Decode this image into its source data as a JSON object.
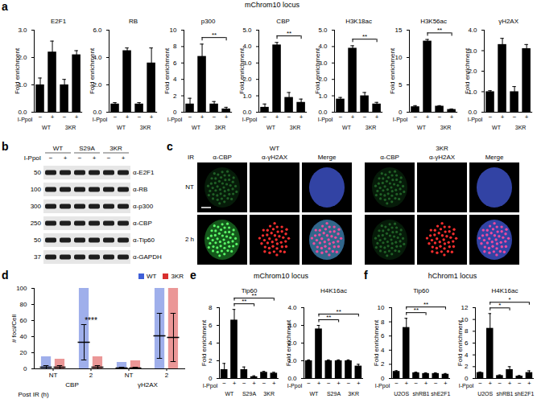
{
  "panels": [
    {
      "label": "a",
      "heading": "mChrom10 locus"
    },
    {
      "label": "b",
      "blot": {
        "columns": [
          "WT",
          "S29A",
          "3KR"
        ],
        "treatment_label": "I-PpoI",
        "treatment": [
          "−",
          "+"
        ],
        "rows": [
          {
            "antibody": "α-E2F1",
            "mw": 50
          },
          {
            "antibody": "α-RB",
            "mw": 100
          },
          {
            "antibody": "α-p300",
            "mw": 300
          },
          {
            "antibody": "α-CBP",
            "mw": 250
          },
          {
            "antibody": "α-Tip60",
            "mw": 50
          },
          {
            "antibody": "α-GAPDH",
            "mw": 37
          }
        ]
      }
    },
    {
      "label": "c",
      "microscopy": {
        "groups": [
          "WT",
          "3KR"
        ],
        "channels": [
          "α-CBP",
          "α-γH2AX",
          "Merge"
        ],
        "row_label": "IR",
        "rows": [
          "NT",
          "2 h"
        ]
      }
    },
    {
      "label": "d"
    },
    {
      "label": "e",
      "heading": "mChrom10 locus"
    },
    {
      "label": "f",
      "heading": "hChrom1 locus"
    }
  ],
  "chart_data": [
    {
      "panel": "a",
      "type": "bar",
      "title": "E2F1",
      "ylabel": "Fold enrichment",
      "row_label": "I-PpoI",
      "categories": [
        "−",
        "+",
        "−",
        "+"
      ],
      "groups": [
        "WT",
        "3KR"
      ],
      "values": [
        1.0,
        2.2,
        1.0,
        2.1
      ],
      "errors": [
        0.25,
        0.4,
        0.2,
        0.15
      ],
      "color": "#000000",
      "ylim": [
        0,
        3
      ],
      "yticks": [
        0,
        1,
        2,
        3
      ]
    },
    {
      "panel": "a",
      "type": "bar",
      "title": "RB",
      "ylabel": "Fold enrichment",
      "row_label": "I-PpoI",
      "categories": [
        "−",
        "+",
        "−",
        "+"
      ],
      "groups": [
        "WT",
        "3KR"
      ],
      "values": [
        0.6,
        4.5,
        0.6,
        3.6
      ],
      "errors": [
        0.1,
        0.2,
        0.1,
        1.1
      ],
      "color": "#000000",
      "ylim": [
        0,
        6
      ],
      "yticks": [
        0,
        2,
        4,
        6
      ]
    },
    {
      "panel": "a",
      "type": "bar",
      "title": "p300",
      "ylabel": "Fold enrichment",
      "row_label": "I-PpoI",
      "categories": [
        "−",
        "+",
        "−",
        "+"
      ],
      "groups": [
        "WT",
        "3KR"
      ],
      "values": [
        1.0,
        6.8,
        1.0,
        0.4
      ],
      "errors": [
        0.7,
        1.5,
        0.3,
        0.2
      ],
      "color": "#000000",
      "ylim": [
        0,
        10
      ],
      "yticks": [
        0,
        2,
        4,
        6,
        8,
        10
      ],
      "annotations": [
        {
          "text": "**",
          "from": 1,
          "to": 3
        }
      ]
    },
    {
      "panel": "a",
      "type": "bar",
      "title": "CBP",
      "ylabel": "Fold enrichment",
      "row_label": "I-PpoI",
      "categories": [
        "−",
        "+",
        "−",
        "+"
      ],
      "groups": [
        "WT",
        "3KR"
      ],
      "values": [
        0.3,
        4.1,
        0.9,
        0.6
      ],
      "errors": [
        0.2,
        0.15,
        0.3,
        0.2
      ],
      "color": "#000000",
      "ylim": [
        0,
        5
      ],
      "yticks": [
        0,
        1,
        2,
        3,
        4,
        5
      ],
      "annotations": [
        {
          "text": "**",
          "from": 1,
          "to": 3
        }
      ]
    },
    {
      "panel": "a",
      "type": "bar",
      "title": "H3K18ac",
      "ylabel": "Fold enrichment",
      "row_label": "I-PpoI",
      "categories": [
        "−",
        "+",
        "−",
        "+"
      ],
      "groups": [
        "WT",
        "3KR"
      ],
      "values": [
        0.8,
        3.9,
        1.0,
        0.5
      ],
      "errors": [
        0.1,
        0.15,
        0.2,
        0.1
      ],
      "color": "#000000",
      "ylim": [
        0,
        5
      ],
      "yticks": [
        0,
        1,
        2,
        3,
        4,
        5
      ],
      "annotations": [
        {
          "text": "**",
          "from": 1,
          "to": 3
        }
      ]
    },
    {
      "panel": "a",
      "type": "bar",
      "title": "H3K56ac",
      "ylabel": "Fold enrichment",
      "row_label": "I-PpoI",
      "categories": [
        "−",
        "+",
        "−",
        "+"
      ],
      "groups": [
        "WT",
        "3KR"
      ],
      "values": [
        1.0,
        13.0,
        1.1,
        0.5
      ],
      "errors": [
        0.2,
        0.3,
        0.1,
        0.1
      ],
      "color": "#000000",
      "ylim": [
        0,
        15
      ],
      "yticks": [
        0,
        5,
        10,
        15
      ],
      "annotations": [
        {
          "text": "**",
          "from": 1,
          "to": 3
        }
      ]
    },
    {
      "panel": "a",
      "type": "bar",
      "title": "γH2AX",
      "ylabel": "Fold enrichment",
      "row_label": "I-PpoI",
      "categories": [
        "−",
        "+",
        "−",
        "+"
      ],
      "groups": [
        "WT",
        "3KR"
      ],
      "values": [
        1.0,
        3.3,
        1.0,
        3.1
      ],
      "errors": [
        0.05,
        0.3,
        0.25,
        0.2
      ],
      "color": "#000000",
      "ylim": [
        0,
        4
      ],
      "yticks": [
        0,
        1,
        2,
        3,
        4
      ]
    },
    {
      "panel": "d",
      "type": "dot",
      "ylabel": "# foci/Cell",
      "xlabel": "Post IR (h)",
      "categories": [
        "NT",
        "2",
        "NT",
        "2"
      ],
      "groups": [
        "CBP",
        "γH2AX"
      ],
      "ylim": [
        0,
        100
      ],
      "yticks": [
        0,
        20,
        40,
        60,
        80,
        100
      ],
      "legend": "top-right",
      "series": [
        {
          "name": "WT",
          "color": "#3f5fd8",
          "mean": [
            2,
            33,
            1,
            41
          ],
          "sd": [
            2,
            22,
            1,
            28
          ],
          "min": [
            0,
            0,
            0,
            0
          ],
          "max": [
            15,
            100,
            8,
            100
          ]
        },
        {
          "name": "3KR",
          "color": "#d8302f",
          "mean": [
            2,
            2,
            1,
            39
          ],
          "sd": [
            2,
            2,
            1,
            30
          ],
          "min": [
            0,
            0,
            0,
            0
          ],
          "max": [
            12,
            15,
            10,
            100
          ]
        }
      ],
      "annotations": [
        {
          "text": "****",
          "at": 1
        }
      ]
    },
    {
      "panel": "e",
      "type": "bar",
      "title": "Tip60",
      "ylabel": "Fold enrichment",
      "row_label": "I-PpoI",
      "categories": [
        "−",
        "+",
        "−",
        "+",
        "−",
        "+"
      ],
      "groups": [
        "WT",
        "S29A",
        "3KR"
      ],
      "values": [
        1.0,
        6.6,
        1.0,
        0.2,
        0.7,
        0.6
      ],
      "errors": [
        0.7,
        1.2,
        0.3,
        0.1,
        0.1,
        0.1
      ],
      "color": "#000000",
      "ylim": [
        0,
        8
      ],
      "yticks": [
        0,
        2,
        4,
        6,
        8
      ],
      "annotations": [
        {
          "text": "**",
          "from": 1,
          "to": 3
        },
        {
          "text": "**",
          "from": 1,
          "to": 5
        }
      ]
    },
    {
      "panel": "e",
      "type": "bar",
      "title": "H4K16ac",
      "ylabel": "Fold enrichment",
      "row_label": "I-PpoI",
      "categories": [
        "−",
        "+",
        "−",
        "+",
        "−",
        "+"
      ],
      "groups": [
        "WT",
        "S29A",
        "3KR"
      ],
      "values": [
        1.0,
        2.8,
        1.0,
        1.0,
        1.0,
        0.7
      ],
      "errors": [
        0.05,
        0.2,
        0.05,
        0.05,
        0.05,
        0.1
      ],
      "color": "#000000",
      "ylim": [
        0,
        4
      ],
      "yticks": [
        0,
        1,
        2,
        3,
        4
      ],
      "annotations": [
        {
          "text": "**",
          "from": 1,
          "to": 3
        },
        {
          "text": "**",
          "from": 1,
          "to": 5
        }
      ]
    },
    {
      "panel": "f",
      "type": "bar",
      "title": "Tip60",
      "ylabel": "Fold enrichment",
      "row_label": "I-PpoI",
      "categories": [
        "−",
        "+",
        "−",
        "+",
        "−",
        "+"
      ],
      "groups": [
        "U2OS",
        "shRB1",
        "shE2F1"
      ],
      "values": [
        1.0,
        7.2,
        0.8,
        0.7,
        0.7,
        0.6
      ],
      "errors": [
        0.1,
        1.3,
        0.1,
        0.1,
        0.1,
        0.1
      ],
      "color": "#000000",
      "ylim": [
        0,
        10
      ],
      "yticks": [
        0,
        2,
        4,
        6,
        8,
        10
      ],
      "annotations": [
        {
          "text": "**",
          "from": 1,
          "to": 3
        },
        {
          "text": "**",
          "from": 1,
          "to": 5
        }
      ]
    },
    {
      "panel": "f",
      "type": "bar",
      "title": "H4K16ac",
      "ylabel": "Fold enrichment",
      "row_label": "I-PpoI",
      "categories": [
        "−",
        "+",
        "−",
        "+",
        "−",
        "+"
      ],
      "groups": [
        "U2OS",
        "shRB1",
        "shE2F1"
      ],
      "values": [
        1.0,
        8.5,
        0.5,
        1.5,
        0.4,
        1.0
      ],
      "errors": [
        0.1,
        2.5,
        0.1,
        0.5,
        0.1,
        0.3
      ],
      "color": "#000000",
      "ylim": [
        0,
        12
      ],
      "yticks": [
        0,
        2,
        4,
        6,
        8,
        10,
        12
      ],
      "annotations": [
        {
          "text": "*",
          "from": 1,
          "to": 3
        },
        {
          "text": "*",
          "from": 1,
          "to": 5
        }
      ]
    }
  ]
}
